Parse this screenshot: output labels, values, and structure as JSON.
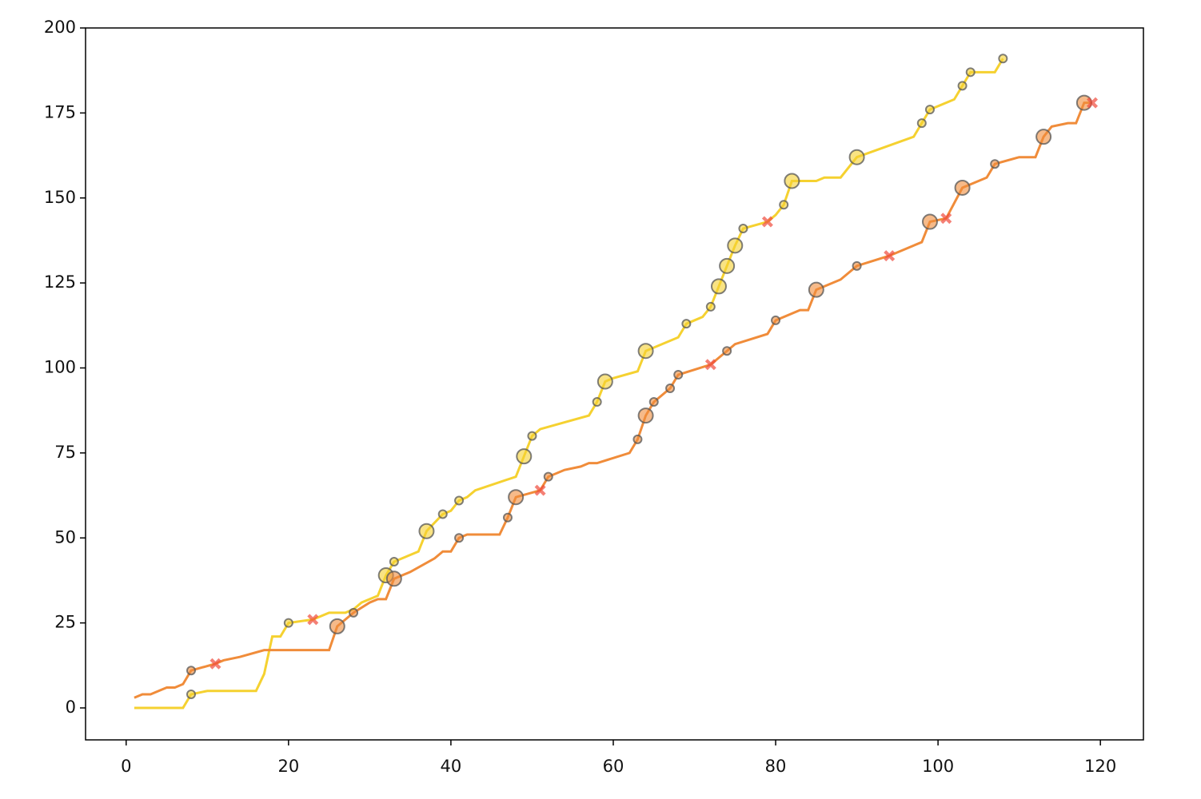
{
  "chart_data": {
    "type": "line",
    "xlim": [
      -5,
      125.3
    ],
    "ylim": [
      -9.4,
      200
    ],
    "xticks": [
      0,
      20,
      40,
      60,
      80,
      100,
      120
    ],
    "yticks": [
      0,
      25,
      50,
      75,
      100,
      125,
      150,
      175,
      200
    ],
    "series": [
      {
        "color": "#f5d130",
        "x": [
          1,
          7,
          8,
          10,
          16,
          17,
          18,
          19,
          20,
          23,
          25,
          27,
          28,
          29,
          31,
          32,
          33,
          34,
          36,
          37,
          39,
          40,
          41,
          42,
          43,
          48,
          49,
          50,
          51,
          54,
          57,
          58,
          59,
          60,
          63,
          64,
          68,
          69,
          70,
          71,
          72,
          73,
          74,
          75,
          76,
          79,
          80,
          81,
          82,
          85,
          86,
          88,
          90,
          97,
          98,
          99,
          102,
          103,
          104,
          107,
          108
        ],
        "values": [
          0,
          0,
          4,
          5,
          5,
          10,
          21,
          21,
          25,
          26,
          28,
          28,
          29,
          31,
          33,
          39,
          43,
          44,
          46,
          52,
          57,
          58,
          61,
          62,
          64,
          68,
          74,
          80,
          82,
          84,
          86,
          90,
          96,
          97,
          99,
          105,
          109,
          113,
          114,
          115,
          118,
          124,
          130,
          136,
          141,
          143,
          145,
          148,
          155,
          155,
          156,
          156,
          162,
          168,
          172,
          176,
          179,
          183,
          187,
          187,
          191
        ],
        "markers": [
          {
            "shape": "circle",
            "size": "small",
            "x": [
              8,
              20,
              33,
              39,
              41,
              50,
              58,
              69,
              72,
              76,
              81,
              98,
              99,
              103,
              104,
              108
            ],
            "y": [
              4,
              25,
              43,
              57,
              61,
              80,
              90,
              113,
              118,
              141,
              148,
              172,
              176,
              183,
              187,
              191
            ]
          },
          {
            "shape": "circle",
            "size": "large",
            "x": [
              32,
              37,
              49,
              59,
              64,
              73,
              74,
              75,
              82,
              90
            ],
            "y": [
              39,
              52,
              74,
              96,
              105,
              124,
              130,
              136,
              155,
              162
            ]
          },
          {
            "shape": "cross",
            "color": "#f04a3c",
            "x": [
              23,
              79
            ],
            "y": [
              26,
              143
            ]
          }
        ]
      },
      {
        "color": "#f08c3a",
        "x": [
          1,
          2,
          3,
          5,
          6,
          7,
          8,
          11,
          12,
          14,
          17,
          25,
          26,
          28,
          30,
          31,
          32,
          33,
          35,
          38,
          39,
          40,
          41,
          42,
          46,
          47,
          48,
          51,
          52,
          54,
          56,
          57,
          58,
          62,
          63,
          64,
          65,
          67,
          68,
          72,
          73,
          74,
          75,
          79,
          80,
          83,
          84,
          85,
          86,
          88,
          90,
          94,
          98,
          99,
          101,
          103,
          106,
          107,
          110,
          112,
          113,
          114,
          116,
          117,
          118,
          119
        ],
        "values": [
          3,
          4,
          4,
          6,
          6,
          7,
          11,
          13,
          14,
          15,
          17,
          17,
          24,
          28,
          31,
          32,
          32,
          38,
          40,
          44,
          46,
          46,
          50,
          51,
          51,
          56,
          62,
          64,
          68,
          70,
          71,
          72,
          72,
          75,
          79,
          86,
          90,
          94,
          98,
          101,
          103,
          105,
          107,
          110,
          114,
          117,
          117,
          123,
          124,
          126,
          130,
          133,
          137,
          143,
          144,
          153,
          156,
          160,
          162,
          162,
          168,
          171,
          172,
          172,
          178,
          178
        ],
        "markers": [
          {
            "shape": "circle",
            "size": "small",
            "x": [
              8,
              28,
              41,
              47,
              52,
              63,
              65,
              67,
              68,
              74,
              80,
              90,
              107
            ],
            "y": [
              11,
              28,
              50,
              56,
              68,
              79,
              90,
              94,
              98,
              105,
              114,
              130,
              160
            ]
          },
          {
            "shape": "circle",
            "size": "large",
            "x": [
              26,
              33,
              48,
              64,
              85,
              99,
              103,
              113,
              118
            ],
            "y": [
              24,
              38,
              62,
              86,
              123,
              143,
              153,
              168,
              178
            ]
          },
          {
            "shape": "cross",
            "color": "#f04a3c",
            "x": [
              11,
              51,
              72,
              94,
              101,
              119
            ],
            "y": [
              13,
              64,
              101,
              133,
              144,
              178
            ]
          }
        ]
      }
    ]
  }
}
